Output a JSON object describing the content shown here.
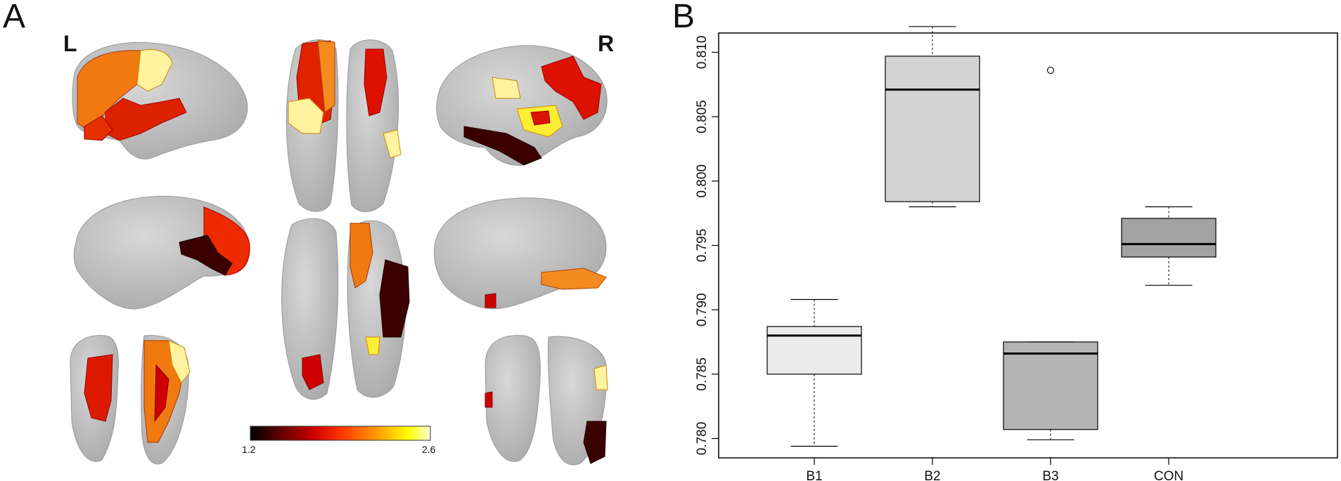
{
  "figure": {
    "panel_a_label": "A",
    "panel_b_label": "B",
    "left_hemisphere_label": "L",
    "right_hemisphere_label": "R",
    "colorbar": {
      "min_label": "1.2",
      "max_label": "2.6",
      "colors": [
        "#000000",
        "#cc0000",
        "#ff3300",
        "#ff9900",
        "#ffff00",
        "#ffffdd"
      ]
    }
  },
  "colors": {
    "brain": "#c8c8c8",
    "brain_edge": "#9a9a9a",
    "dark": "#3a0000",
    "red": "#dd1100",
    "orange": "#ff7700",
    "yellow": "#ffee33",
    "pale": "#fff6b0"
  },
  "chart_data": {
    "type": "boxplot",
    "categories": [
      "B1",
      "B2",
      "B3",
      "CON"
    ],
    "ylim": [
      0.7785,
      0.8115
    ],
    "yticks": [
      "0.780",
      "0.785",
      "0.790",
      "0.795",
      "0.800",
      "0.805",
      "0.810"
    ],
    "boxes": [
      {
        "name": "B1",
        "min": 0.7794,
        "q1": 0.785,
        "median": 0.788,
        "q3": 0.7887,
        "max": 0.7908,
        "fill": "#ebebeb",
        "outliers": []
      },
      {
        "name": "B2",
        "min": 0.798,
        "q1": 0.7984,
        "median": 0.8071,
        "q3": 0.8097,
        "max": 0.812,
        "fill": "#d3d3d3",
        "outliers": []
      },
      {
        "name": "B3",
        "min": 0.7799,
        "q1": 0.7807,
        "median": 0.7866,
        "q3": 0.7875,
        "max": 0.7875,
        "fill": "#b4b4b4",
        "outliers": [
          0.8086
        ]
      },
      {
        "name": "CON",
        "min": 0.7919,
        "q1": 0.7941,
        "median": 0.7951,
        "q3": 0.7971,
        "max": 0.798,
        "fill": "#a3a3a3",
        "outliers": []
      }
    ]
  }
}
